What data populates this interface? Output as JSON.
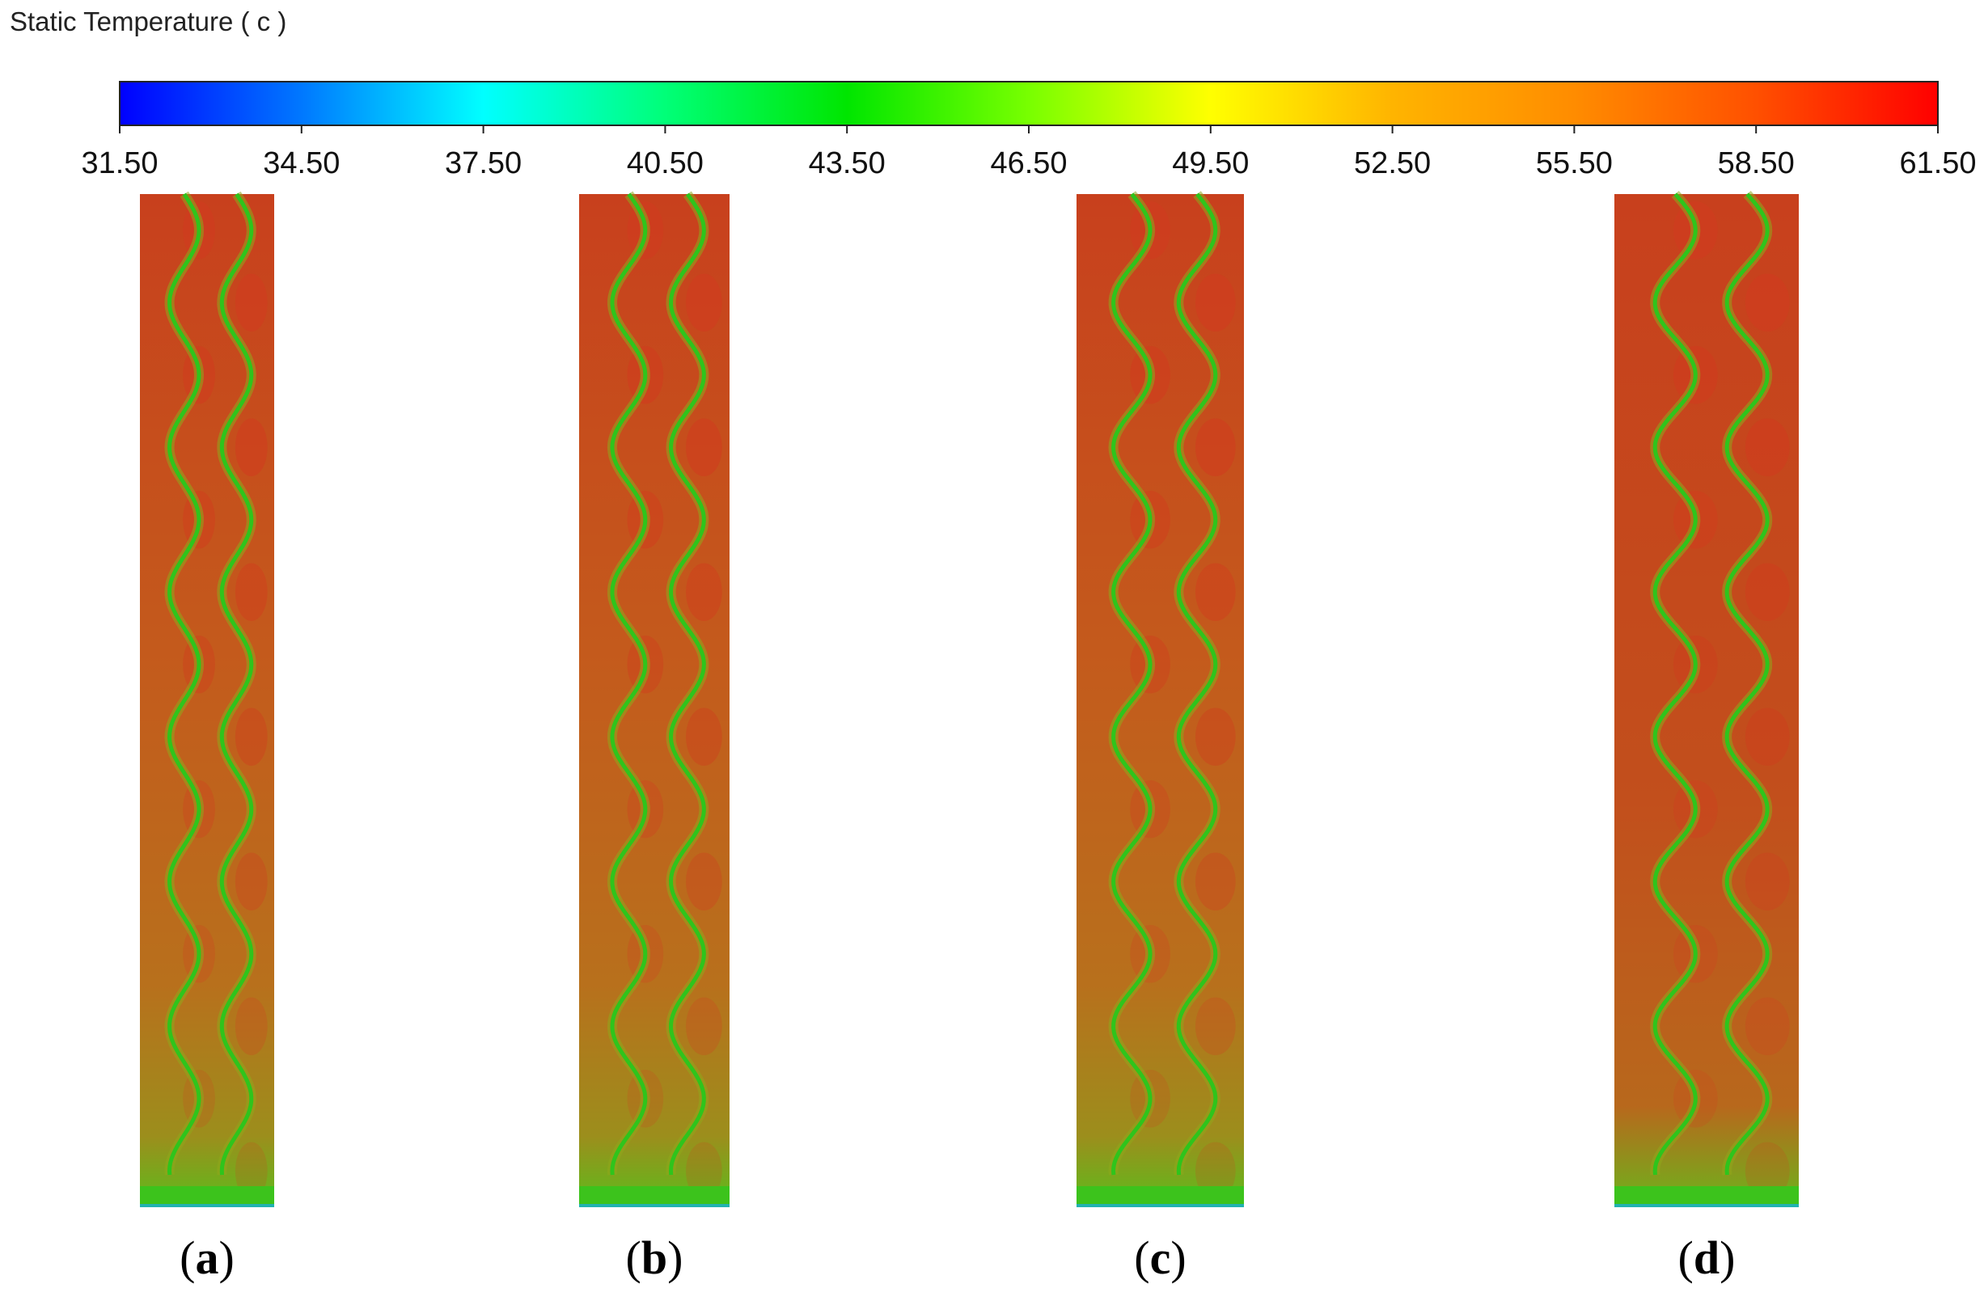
{
  "legend": {
    "title": "Static Temperature ( c )",
    "min": 31.5,
    "max": 61.5,
    "ticks": [
      "31.50",
      "34.50",
      "37.50",
      "40.50",
      "43.50",
      "46.50",
      "49.50",
      "52.50",
      "55.50",
      "58.50",
      "61.50"
    ],
    "colors": [
      "#0000ff",
      "#0078ff",
      "#00ffff",
      "#00ff78",
      "#00e600",
      "#78ff00",
      "#ffff00",
      "#ffb400",
      "#ff8c00",
      "#ff5000",
      "#ff0000"
    ]
  },
  "panels": [
    {
      "label": "a",
      "waves": 7
    },
    {
      "label": "b",
      "waves": 7
    },
    {
      "label": "c",
      "waves": 7
    },
    {
      "label": "d",
      "waves": 7
    }
  ],
  "palette": {
    "hot": "#d23a1f",
    "warm": "#c8601c",
    "mid": "#b7741c",
    "cool": "#8fa81c",
    "channel": "#2fc41c",
    "channel_inner": "#22b2b0",
    "base": "#3cc31c"
  }
}
